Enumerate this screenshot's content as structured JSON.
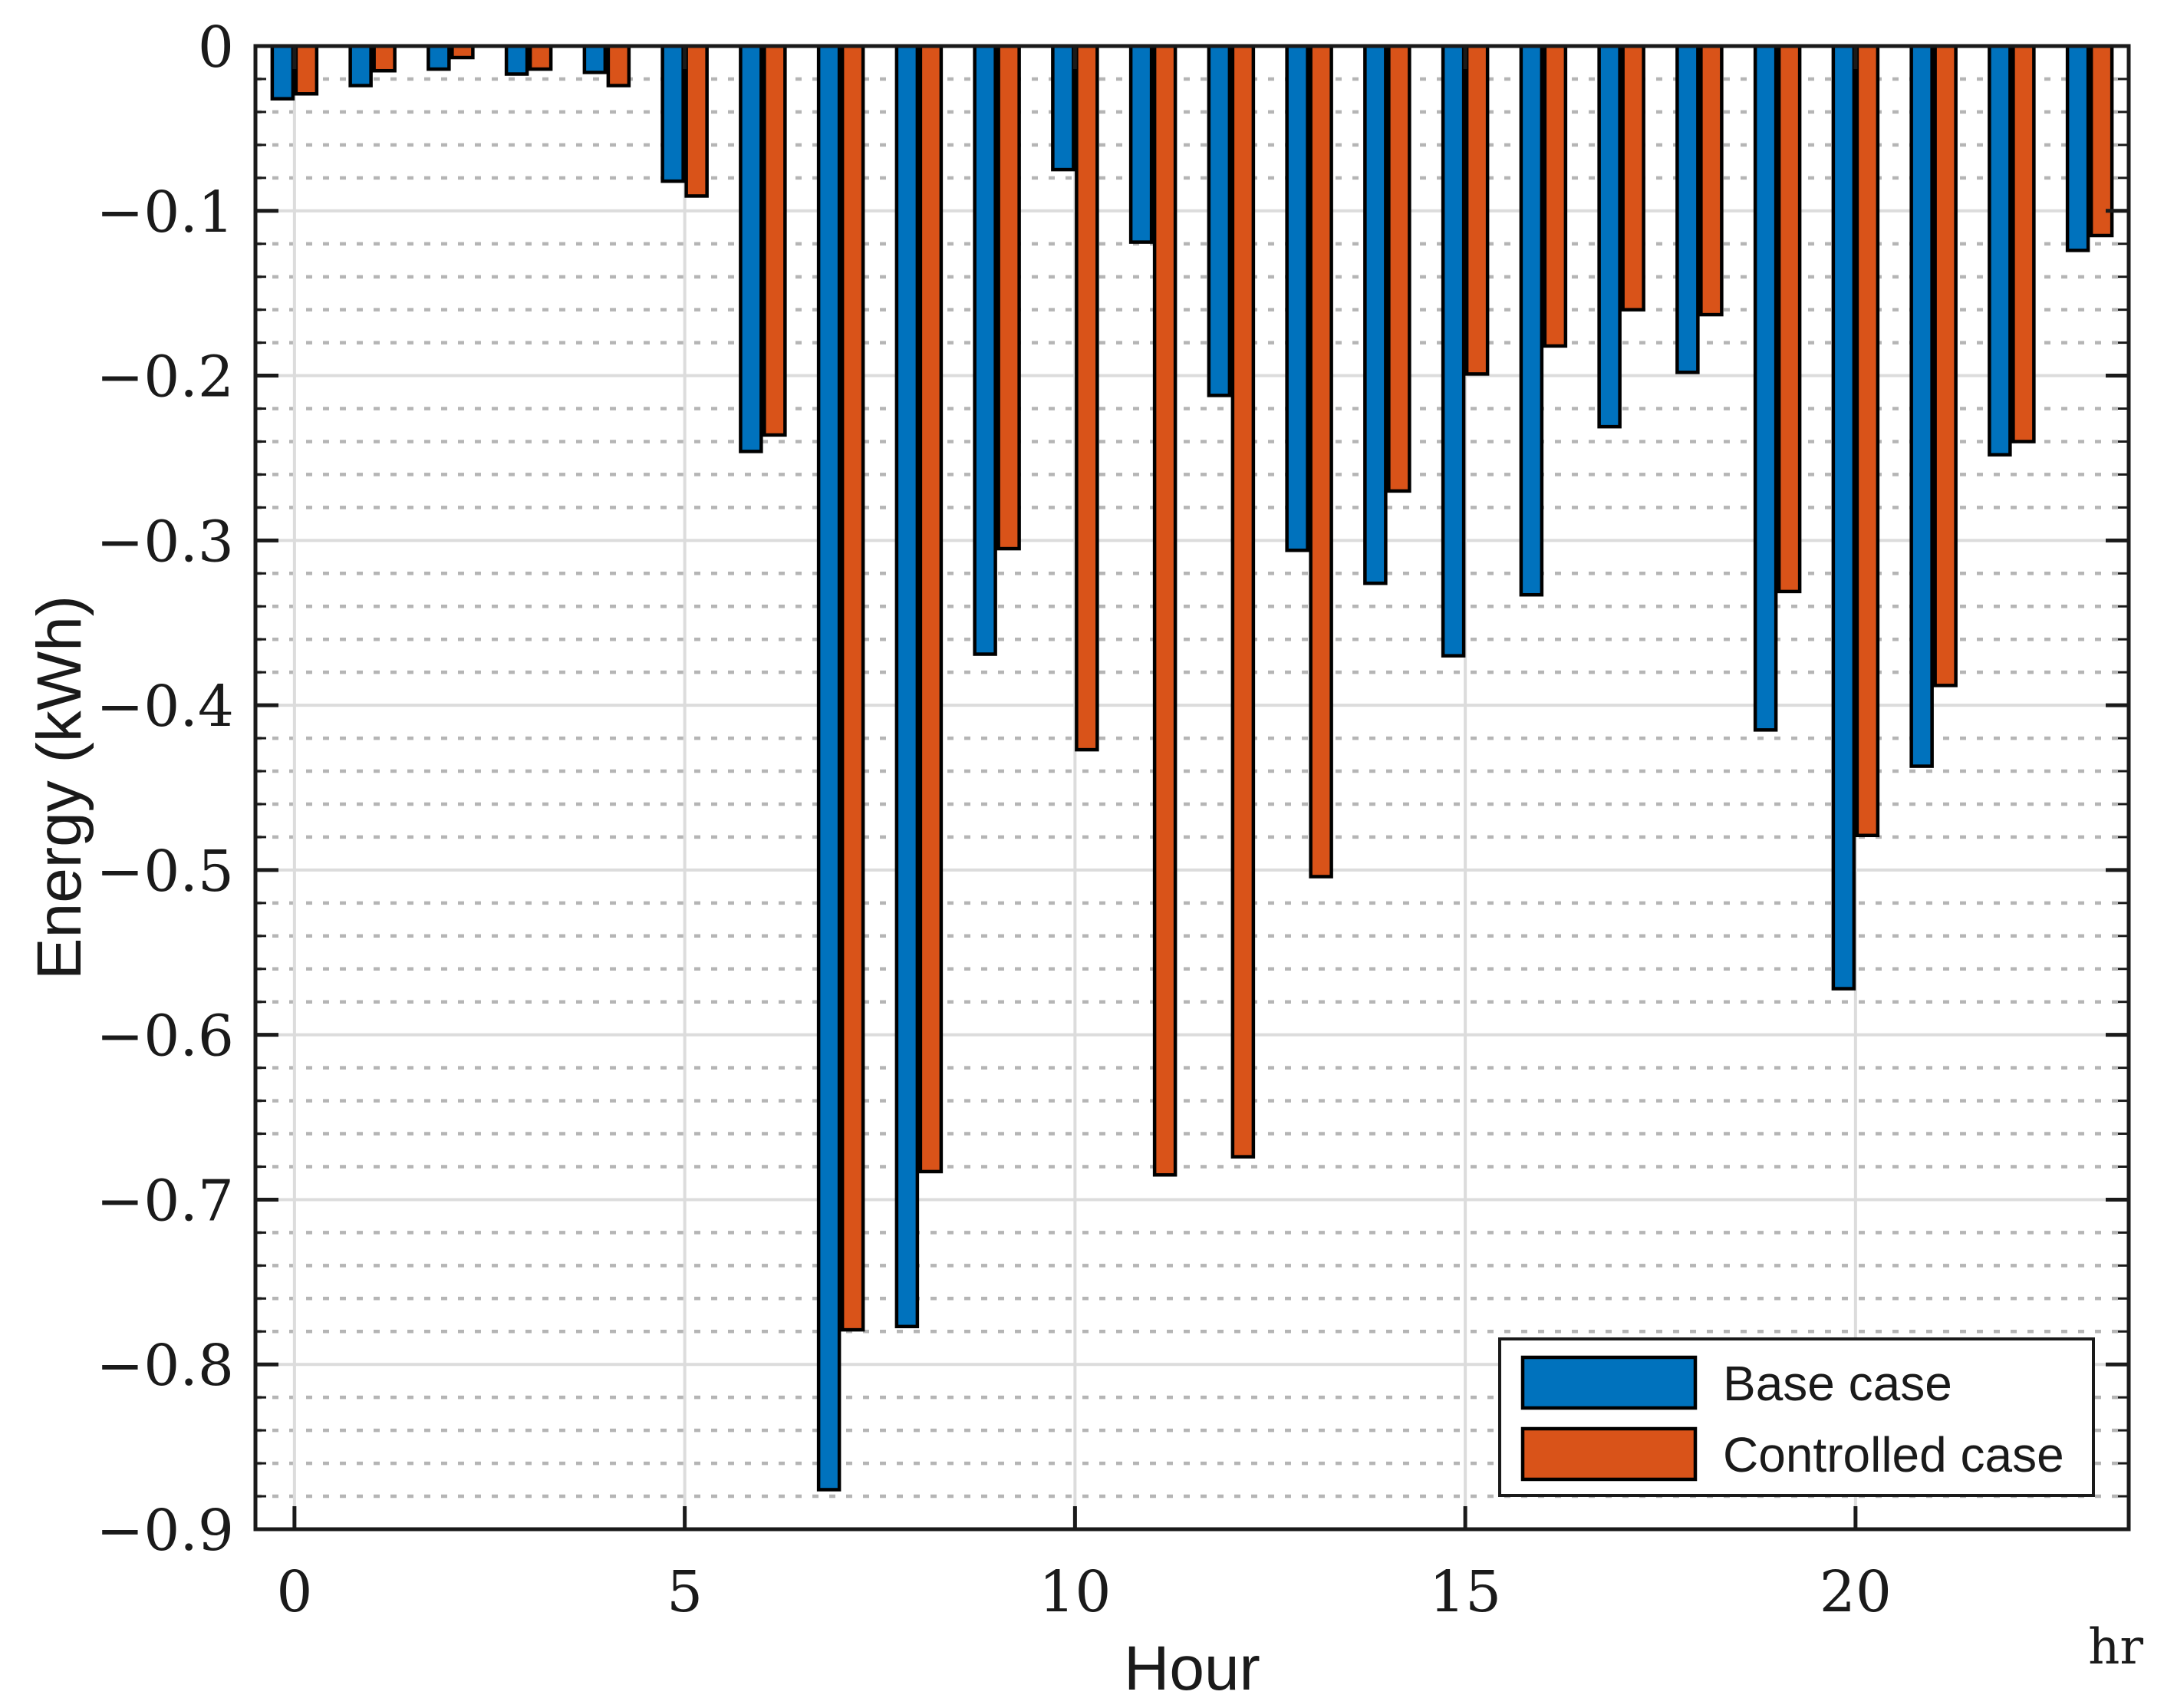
{
  "figure": {
    "background": "#FFFFFF",
    "axis_color": "#1A1A1A",
    "grid_major_color": "#DCDCDC",
    "grid_minor_color": "#B5B5B5",
    "bar_edge_color": "#000000"
  },
  "chart_data": {
    "type": "bar",
    "title": "",
    "xlabel": "Hour",
    "ylabel": "Energy (kWh)",
    "x_unit_label": "hr",
    "categories": [
      0,
      1,
      2,
      3,
      4,
      5,
      6,
      7,
      8,
      9,
      10,
      11,
      12,
      13,
      14,
      15,
      16,
      17,
      18,
      19,
      20,
      21,
      22,
      23
    ],
    "series": [
      {
        "name": "Base case",
        "color": "#0072BD",
        "values": [
          -0.032,
          -0.024,
          -0.014,
          -0.017,
          -0.016,
          -0.082,
          -0.246,
          -0.876,
          -0.777,
          -0.369,
          -0.075,
          -0.119,
          -0.212,
          -0.306,
          -0.326,
          -0.37,
          -0.333,
          -0.231,
          -0.198,
          -0.415,
          -0.572,
          -0.437,
          -0.248,
          -0.124
        ]
      },
      {
        "name": "Controlled case",
        "color": "#D95319",
        "values": [
          -0.029,
          -0.015,
          -0.007,
          -0.014,
          -0.024,
          -0.091,
          -0.236,
          -0.779,
          -0.683,
          -0.305,
          -0.427,
          -0.685,
          -0.674,
          -0.504,
          -0.27,
          -0.199,
          -0.182,
          -0.16,
          -0.163,
          -0.331,
          -0.479,
          -0.388,
          -0.24,
          -0.115
        ]
      }
    ],
    "ylim": [
      -0.9,
      0
    ],
    "xlim": [
      -0.5,
      23.5
    ],
    "yticks": [
      0,
      -0.1,
      -0.2,
      -0.3,
      -0.4,
      -0.5,
      -0.6,
      -0.7,
      -0.8,
      -0.9
    ],
    "ytick_labels": [
      "0",
      "−0.1",
      "−0.2",
      "−0.3",
      "−0.4",
      "−0.5",
      "−0.6",
      "−0.7",
      "−0.8",
      "−0.9"
    ],
    "xticks": [
      0,
      5,
      10,
      15,
      20
    ],
    "xtick_labels": [
      "0",
      "5",
      "10",
      "15",
      "20"
    ],
    "grid": {
      "major": true,
      "minor_y_step": 0.02,
      "minor_style": "dotted",
      "legend_border": true
    },
    "legend_position": "bottom-right",
    "legend": [
      {
        "label": "Base case",
        "color": "#0072BD"
      },
      {
        "label": "Controlled case",
        "color": "#D95319"
      }
    ]
  }
}
